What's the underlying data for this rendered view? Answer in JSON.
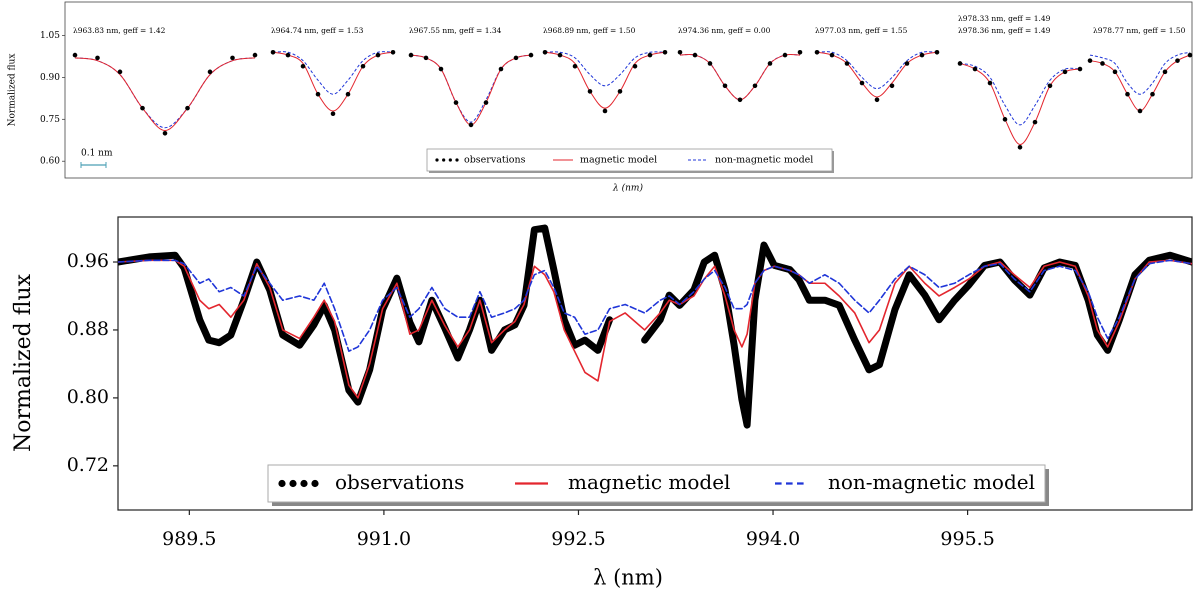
{
  "chart_data": [
    {
      "type": "line-panels",
      "ylabel": "Normalized flux",
      "xlabel": "λ (nm)",
      "ylim": [
        0.54,
        1.17
      ],
      "yticks": [
        {
          "value": 0.6,
          "label": "0.60"
        },
        0.75,
        {
          "value": 0.9,
          "label": "0.90"
        },
        1.05
      ],
      "scale_bar": {
        "value": 0.1,
        "label": "0.1 nm"
      },
      "legend": "lower center",
      "series": [
        {
          "name": "observations",
          "color": "#000000",
          "style": "dots"
        },
        {
          "name": "magnetic model",
          "color": "#e3262e",
          "style": "solid"
        },
        {
          "name": "non-magnetic model",
          "color": "#1f35d8",
          "style": "dashed"
        }
      ],
      "panels": [
        {
          "labels": [
            "λ963.83 nm, geff = 1.42"
          ],
          "xlim": [
            -0.38,
            0.38
          ],
          "x": [
            -0.36,
            -0.27,
            -0.18,
            -0.09,
            0,
            0.09,
            0.18,
            0.27,
            0.36
          ],
          "values": [
            [
              0.98,
              0.97,
              0.92,
              0.79,
              0.7,
              0.79,
              0.92,
              0.97,
              0.98
            ],
            [
              0.97,
              0.96,
              0.91,
              0.79,
              0.71,
              0.79,
              0.91,
              0.96,
              0.97
            ],
            [
              0.97,
              0.96,
              0.91,
              0.79,
              0.72,
              0.79,
              0.91,
              0.96,
              0.97
            ]
          ]
        },
        {
          "labels": [
            "λ964.74 nm, geff = 1.53"
          ],
          "xlim": [
            -0.26,
            0.26
          ],
          "x": [
            -0.24,
            -0.18,
            -0.12,
            -0.06,
            0,
            0.06,
            0.12,
            0.18,
            0.24
          ],
          "values": [
            [
              0.99,
              0.98,
              0.94,
              0.84,
              0.77,
              0.84,
              0.94,
              0.98,
              0.99
            ],
            [
              0.99,
              0.98,
              0.95,
              0.84,
              0.78,
              0.84,
              0.94,
              0.98,
              0.99
            ],
            [
              0.99,
              0.99,
              0.96,
              0.89,
              0.84,
              0.89,
              0.96,
              0.99,
              0.99
            ]
          ]
        },
        {
          "labels": [
            "λ967.55 nm, geff = 1.34"
          ],
          "xlim": [
            -0.26,
            0.26
          ],
          "x": [
            -0.24,
            -0.18,
            -0.12,
            -0.06,
            0,
            0.06,
            0.12,
            0.18,
            0.24
          ],
          "values": [
            [
              0.98,
              0.97,
              0.93,
              0.81,
              0.73,
              0.81,
              0.93,
              0.97,
              0.98
            ],
            [
              0.98,
              0.97,
              0.93,
              0.81,
              0.73,
              0.81,
              0.93,
              0.97,
              0.98
            ],
            [
              0.98,
              0.97,
              0.93,
              0.81,
              0.74,
              0.82,
              0.93,
              0.97,
              0.98
            ]
          ]
        },
        {
          "labels": [
            "λ968.89 nm, geff = 1.50"
          ],
          "xlim": [
            -0.26,
            0.26
          ],
          "x": [
            -0.24,
            -0.18,
            -0.12,
            -0.06,
            0,
            0.06,
            0.12,
            0.18,
            0.24
          ],
          "values": [
            [
              0.99,
              0.98,
              0.94,
              0.85,
              0.78,
              0.85,
              0.94,
              0.98,
              0.99
            ],
            [
              0.99,
              0.98,
              0.95,
              0.85,
              0.79,
              0.85,
              0.95,
              0.98,
              0.99
            ],
            [
              0.99,
              0.99,
              0.97,
              0.91,
              0.87,
              0.91,
              0.97,
              0.99,
              0.99
            ]
          ]
        },
        {
          "labels": [
            "λ974.36 nm, geff = 0.00"
          ],
          "xlim": [
            -0.26,
            0.26
          ],
          "x": [
            -0.24,
            -0.18,
            -0.12,
            -0.06,
            0,
            0.06,
            0.12,
            0.18,
            0.24
          ],
          "values": [
            [
              0.99,
              0.98,
              0.95,
              0.87,
              0.82,
              0.87,
              0.95,
              0.98,
              0.99
            ],
            [
              0.98,
              0.98,
              0.95,
              0.87,
              0.82,
              0.87,
              0.95,
              0.98,
              0.98
            ],
            [
              0.98,
              0.98,
              0.95,
              0.87,
              0.82,
              0.87,
              0.95,
              0.98,
              0.98
            ]
          ]
        },
        {
          "labels": [
            "λ977.03 nm, geff = 1.55"
          ],
          "xlim": [
            -0.26,
            0.26
          ],
          "x": [
            -0.24,
            -0.18,
            -0.12,
            -0.06,
            0,
            0.06,
            0.12,
            0.18,
            0.24
          ],
          "values": [
            [
              0.99,
              0.98,
              0.95,
              0.88,
              0.82,
              0.87,
              0.95,
              0.98,
              0.99
            ],
            [
              0.99,
              0.98,
              0.95,
              0.88,
              0.83,
              0.88,
              0.95,
              0.98,
              0.99
            ],
            [
              0.99,
              0.99,
              0.96,
              0.9,
              0.86,
              0.9,
              0.96,
              0.99,
              0.99
            ]
          ]
        },
        {
          "labels": [
            "λ978.33 nm, geff = 1.49",
            "λ978.36 nm, geff = 1.49"
          ],
          "xlim": [
            -0.26,
            0.26
          ],
          "x": [
            -0.24,
            -0.18,
            -0.12,
            -0.06,
            0,
            0.06,
            0.12,
            0.18,
            0.24
          ],
          "values": [
            [
              0.95,
              0.93,
              0.88,
              0.75,
              0.65,
              0.74,
              0.87,
              0.92,
              0.93
            ],
            [
              0.95,
              0.93,
              0.88,
              0.75,
              0.66,
              0.74,
              0.87,
              0.92,
              0.93
            ],
            [
              0.95,
              0.94,
              0.9,
              0.8,
              0.73,
              0.8,
              0.89,
              0.93,
              0.93
            ]
          ]
        },
        {
          "labels": [
            "λ978.77 nm, geff = 1.50"
          ],
          "xlim": [
            -0.2,
            0.2
          ],
          "x": [
            -0.2,
            -0.15,
            -0.1,
            -0.05,
            0,
            0.05,
            0.1,
            0.15,
            0.2
          ],
          "values": [
            [
              0.96,
              0.95,
              0.92,
              0.84,
              0.78,
              0.84,
              0.92,
              0.96,
              0.98
            ],
            [
              0.96,
              0.95,
              0.92,
              0.84,
              0.78,
              0.84,
              0.92,
              0.96,
              0.98
            ],
            [
              0.98,
              0.97,
              0.95,
              0.88,
              0.84,
              0.88,
              0.95,
              0.98,
              0.99
            ]
          ]
        }
      ]
    },
    {
      "type": "line",
      "ylabel": "Normalized flux",
      "xlabel": "λ (nm)",
      "xlim": [
        988.95,
        997.23
      ],
      "ylim": [
        0.668,
        1.013
      ],
      "xticks": [
        989.5,
        {
          "value": 991,
          "label": "991.0"
        },
        992.5,
        {
          "value": 994,
          "label": "994.0"
        },
        995.5
      ],
      "yticks": [
        0.96,
        0.88,
        {
          "value": 0.8,
          "label": "0.80"
        },
        0.72
      ],
      "legend": "lower center",
      "x": [
        988.95,
        989.19,
        989.39,
        989.46,
        989.58,
        989.65,
        989.73,
        989.82,
        989.92,
        990.02,
        990.12,
        990.22,
        990.35,
        990.46,
        990.54,
        990.62,
        990.73,
        990.8,
        990.89,
        990.99,
        991.1,
        991.2,
        991.27,
        991.37,
        991.47,
        991.57,
        991.66,
        991.74,
        991.83,
        991.93,
        992.01,
        992.08,
        992.16,
        992.24,
        992.31,
        992.39,
        992.47,
        992.55,
        992.65,
        992.74,
        992.86,
        993.01,
        993.13,
        993.2,
        993.28,
        993.39,
        993.47,
        993.55,
        993.63,
        993.7,
        993.76,
        993.8,
        993.86,
        993.93,
        994.01,
        994.13,
        994.2,
        994.28,
        994.4,
        994.51,
        994.63,
        994.74,
        994.82,
        994.94,
        995.05,
        995.17,
        995.28,
        995.4,
        995.51,
        995.63,
        995.75,
        995.86,
        995.98,
        996.09,
        996.21,
        996.33,
        996.43,
        996.5,
        996.58,
        996.67,
        996.79,
        996.9,
        997.06,
        997.23
      ],
      "series": [
        {
          "name": "observations",
          "color": "#000000",
          "style": "dots",
          "linewidth": 7,
          "values": [
            0.96,
            0.966,
            0.968,
            0.953,
            0.892,
            0.868,
            0.865,
            0.874,
            0.915,
            0.96,
            0.927,
            0.874,
            0.862,
            0.886,
            0.909,
            0.88,
            0.809,
            0.795,
            0.833,
            0.904,
            0.941,
            0.889,
            0.866,
            0.915,
            0.882,
            0.847,
            0.88,
            0.915,
            0.856,
            0.88,
            0.886,
            0.909,
            0.998,
            1.0,
            0.951,
            0.892,
            0.862,
            0.868,
            0.856,
            0.892,
            null,
            0.868,
            0.892,
            0.921,
            0.909,
            0.927,
            0.96,
            0.968,
            0.927,
            0.862,
            0.798,
            0.768,
            0.915,
            0.98,
            0.956,
            0.951,
            0.939,
            0.915,
            0.915,
            0.909,
            0.868,
            0.833,
            0.839,
            0.904,
            0.945,
            0.921,
            0.892,
            0.915,
            0.933,
            0.956,
            0.96,
            0.939,
            0.921,
            0.953,
            0.96,
            0.956,
            0.915,
            0.874,
            0.856,
            0.892,
            0.945,
            0.962,
            0.968,
            0.96
          ]
        },
        {
          "name": "magnetic model",
          "color": "#e3262e",
          "style": "solid",
          "linewidth": 1.6,
          "values": [
            0.96,
            0.962,
            0.962,
            0.955,
            0.915,
            0.905,
            0.91,
            0.895,
            0.915,
            0.958,
            0.93,
            0.88,
            0.87,
            0.895,
            0.915,
            0.89,
            0.815,
            0.8,
            0.84,
            0.905,
            0.935,
            0.875,
            0.88,
            0.915,
            0.885,
            0.86,
            0.88,
            0.915,
            0.865,
            0.88,
            0.89,
            0.91,
            0.955,
            0.945,
            0.925,
            0.88,
            0.855,
            0.83,
            0.82,
            0.89,
            0.9,
            0.88,
            0.9,
            0.915,
            0.91,
            0.92,
            0.94,
            0.955,
            0.92,
            0.88,
            0.86,
            0.875,
            0.935,
            0.95,
            0.955,
            0.95,
            0.945,
            0.935,
            0.935,
            0.92,
            0.9,
            0.865,
            0.88,
            0.935,
            0.955,
            0.935,
            0.92,
            0.93,
            0.94,
            0.955,
            0.96,
            0.945,
            0.93,
            0.955,
            0.96,
            0.955,
            0.92,
            0.88,
            0.86,
            0.89,
            0.94,
            0.96,
            0.962,
            0.958
          ]
        },
        {
          "name": "non-magnetic model",
          "color": "#1f35d8",
          "style": "dashed",
          "linewidth": 1.6,
          "values": [
            0.96,
            0.962,
            0.962,
            0.958,
            0.935,
            0.94,
            0.925,
            0.93,
            0.92,
            0.955,
            0.935,
            0.915,
            0.92,
            0.915,
            0.935,
            0.905,
            0.855,
            0.86,
            0.88,
            0.915,
            0.93,
            0.895,
            0.905,
            0.93,
            0.905,
            0.895,
            0.895,
            0.925,
            0.895,
            0.9,
            0.905,
            0.915,
            0.945,
            0.95,
            0.93,
            0.9,
            0.895,
            0.875,
            0.88,
            0.905,
            0.91,
            0.9,
            0.915,
            0.92,
            0.91,
            0.925,
            0.94,
            0.95,
            0.93,
            0.905,
            0.905,
            0.91,
            0.935,
            0.95,
            0.955,
            0.95,
            0.945,
            0.935,
            0.945,
            0.935,
            0.915,
            0.9,
            0.915,
            0.94,
            0.955,
            0.945,
            0.93,
            0.935,
            0.945,
            0.955,
            0.958,
            0.94,
            0.925,
            0.95,
            0.955,
            0.95,
            0.925,
            0.895,
            0.87,
            0.895,
            0.94,
            0.958,
            0.962,
            0.958
          ]
        }
      ]
    }
  ]
}
